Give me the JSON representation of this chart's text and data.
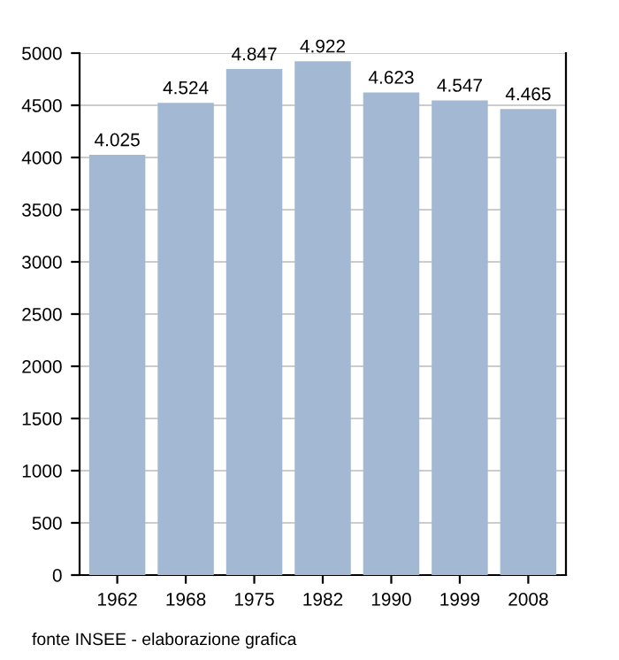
{
  "chart_data": {
    "type": "bar",
    "categories": [
      "1962",
      "1968",
      "1975",
      "1982",
      "1990",
      "1999",
      "2008"
    ],
    "values": [
      4025,
      4524,
      4847,
      4922,
      4623,
      4547,
      4465
    ],
    "value_labels": [
      "4.025",
      "4.524",
      "4.847",
      "4.922",
      "4.623",
      "4.547",
      "4.465"
    ],
    "color": "#a3b9d3",
    "ylim": [
      0,
      5000
    ],
    "yticks": [
      0,
      500,
      1000,
      1500,
      2000,
      2500,
      3000,
      3500,
      4000,
      4500,
      5000
    ],
    "grid": "y",
    "annotations": [
      "fonte INSEE - elaborazione grafica"
    ]
  }
}
